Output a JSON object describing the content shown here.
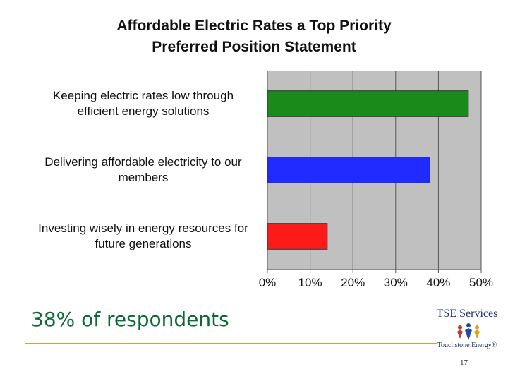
{
  "title_line1": "Affordable Electric Rates a Top Priority",
  "title_line2": "Preferred Position Statement",
  "chart_data": {
    "type": "bar",
    "orientation": "horizontal",
    "title": "Affordable Electric Rates a Top Priority Preferred Position Statement",
    "categories": [
      "Keeping electric rates low through efficient energy solutions",
      "Delivering affordable electricity to our members",
      "Investing wisely in energy resources for future generations"
    ],
    "category_lines": [
      [
        "Keeping electric rates low through",
        "efficient energy solutions"
      ],
      [
        "Delivering affordable electricity to our",
        "members"
      ],
      [
        "Investing wisely in energy resources for",
        "future generations"
      ]
    ],
    "values": [
      47,
      38,
      14
    ],
    "colors": [
      "#1a8a1a",
      "#1f2bff",
      "#ff1a1a"
    ],
    "xlim": [
      0,
      50
    ],
    "xticks": [
      0,
      10,
      20,
      30,
      40,
      50
    ],
    "xtick_labels": [
      "0%",
      "10%",
      "20%",
      "30%",
      "40%",
      "50%"
    ],
    "grid": true,
    "plot_background": "#c0c0c0",
    "xlabel": "",
    "ylabel": ""
  },
  "headline": "38% of respondents",
  "logo": {
    "name": "TSE Services",
    "sub": "Touchstone Energy®",
    "mark_icon": "touchstone-energy-logo-icon"
  },
  "page_number": "17",
  "colors": {
    "headline": "#0a6b34",
    "rule": "#c8a838"
  }
}
